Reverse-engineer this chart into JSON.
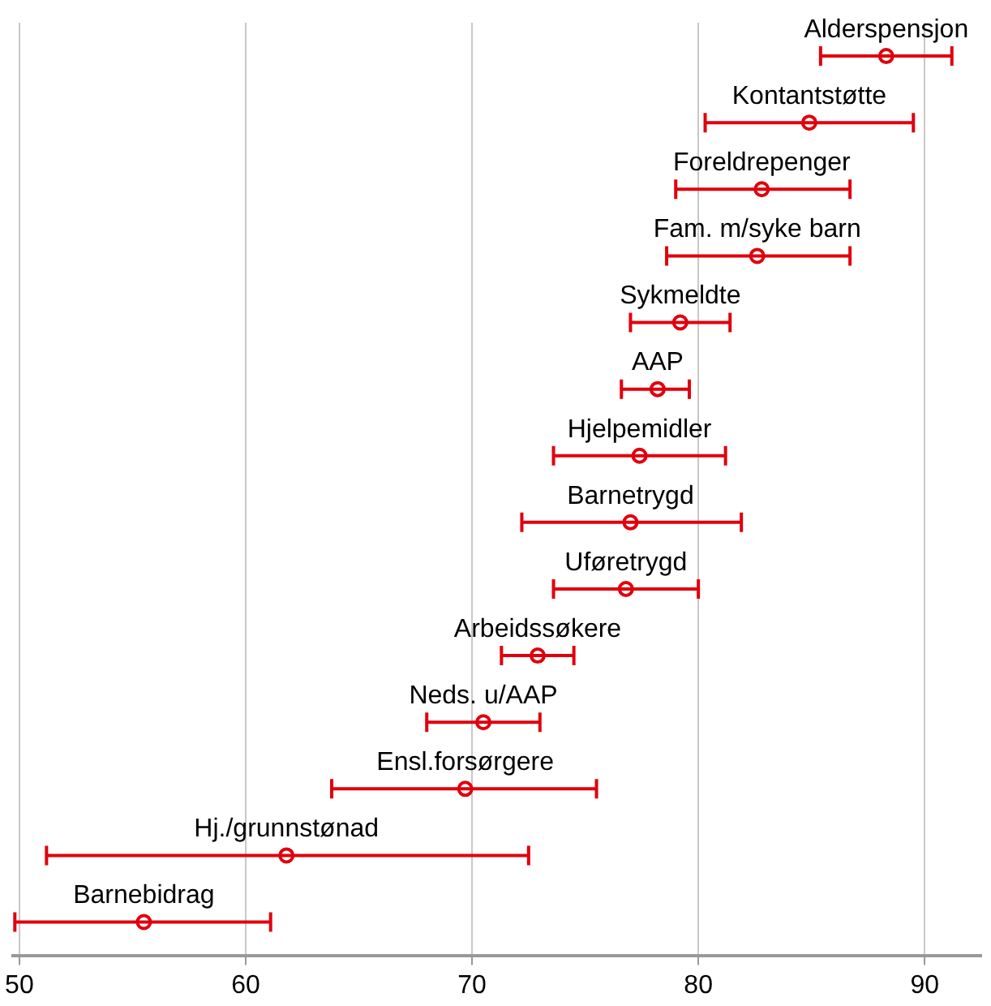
{
  "chart_data": {
    "type": "scatter",
    "orientation": "horizontal",
    "marker": "circle",
    "grid": "x",
    "tick_labels": "x",
    "legend": false,
    "categories": [
      "Alderspensjon",
      "Kontantstøtte",
      "Foreldrepenger",
      "Fam. m/syke barn",
      "Sykmeldte",
      "AAP",
      "Hjelpemidler",
      "Barnetrygd",
      "Uføretrygd",
      "Arbeidssøkere",
      "Neds. u/AAP",
      "Ensl.forsørgere",
      "Hj./grunnstønad",
      "Barnebidrag"
    ],
    "values": [
      88.3,
      84.9,
      82.8,
      82.6,
      79.2,
      78.2,
      77.4,
      77.0,
      76.8,
      72.9,
      70.5,
      69.7,
      61.8,
      55.5
    ],
    "errors": [
      [
        85.4,
        91.2
      ],
      [
        80.3,
        89.5
      ],
      [
        79.0,
        86.7
      ],
      [
        78.6,
        86.7
      ],
      [
        77.0,
        81.4
      ],
      [
        76.6,
        79.6
      ],
      [
        73.6,
        81.2
      ],
      [
        72.2,
        81.9
      ],
      [
        73.6,
        80.0
      ],
      [
        71.3,
        74.5
      ],
      [
        68.0,
        73.0
      ],
      [
        63.8,
        75.5
      ],
      [
        51.2,
        72.5
      ],
      [
        49.8,
        61.1
      ]
    ],
    "color": "#e0000d",
    "xlim": [
      49.7,
      92.5
    ],
    "xticks": [
      50,
      60,
      70,
      80,
      90
    ]
  }
}
